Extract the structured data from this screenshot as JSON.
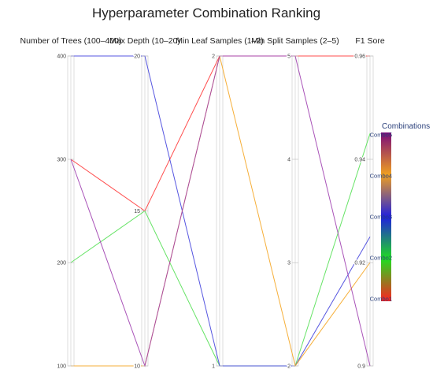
{
  "chart_data": {
    "type": "parallel_coordinates",
    "title": "Hyperparameter Combination Ranking",
    "axes": [
      {
        "label": "Number of Trees (100–400)",
        "range": [
          100,
          400
        ],
        "ticks": [
          "100",
          "200",
          "300",
          "400"
        ],
        "tick_values": [
          100,
          200,
          300,
          400
        ]
      },
      {
        "label": "Max Depth  (10–20)",
        "range": [
          10,
          20
        ],
        "ticks": [
          "10",
          "15",
          "20"
        ],
        "tick_values": [
          10,
          15,
          20
        ]
      },
      {
        "label": "Min Leaf Samples (1–2)",
        "range": [
          1,
          2
        ],
        "ticks": [
          "1",
          "2"
        ],
        "tick_values": [
          1,
          2
        ]
      },
      {
        "label": "Min Split Samples (2–5)",
        "range": [
          2,
          5
        ],
        "ticks": [
          "2",
          "3",
          "4",
          "5"
        ],
        "tick_values": [
          2,
          3,
          4,
          5
        ]
      },
      {
        "label": "F1 Sore",
        "range": [
          0.9,
          0.96
        ],
        "ticks": [
          "0.9",
          "0.92",
          "0.94",
          "0.96"
        ],
        "tick_values": [
          0.9,
          0.92,
          0.94,
          0.96
        ]
      }
    ],
    "series": [
      {
        "name": "Combo1",
        "values": [
          300,
          15,
          2,
          5,
          0.96
        ],
        "color": "#ff3b3b"
      },
      {
        "name": "Combo2",
        "values": [
          200,
          15,
          1,
          2,
          0.945
        ],
        "color": "#55e055"
      },
      {
        "name": "Combo3",
        "values": [
          400,
          20,
          1,
          2,
          0.925
        ],
        "color": "#4444dd"
      },
      {
        "name": "Combo4",
        "values": [
          100,
          10,
          2,
          2,
          0.92
        ],
        "color": "#f5a623"
      },
      {
        "name": "Combo5",
        "values": [
          300,
          10,
          2,
          5,
          0.9
        ],
        "color": "#a040b0"
      }
    ],
    "colorbar": {
      "title": "Combinations",
      "labels": [
        "Combo5",
        "Combo4",
        "Combo3",
        "Combo2",
        "Combo1"
      ],
      "colors": [
        "#7a0a7a",
        "#f0a020",
        "#2020dd",
        "#20dd20",
        "#ff2020"
      ]
    }
  }
}
